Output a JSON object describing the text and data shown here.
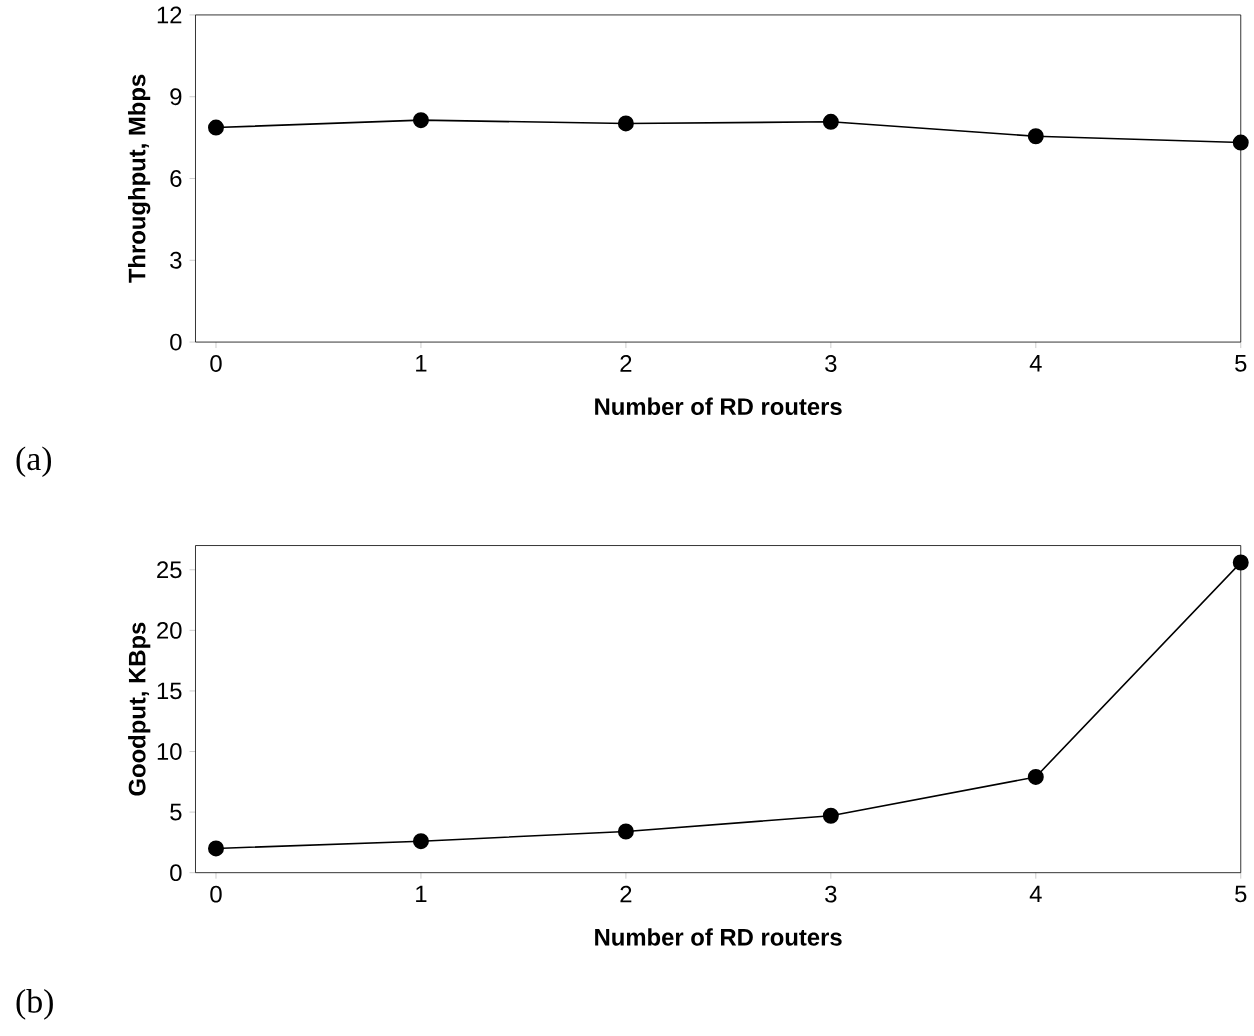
{
  "chart_data": [
    {
      "type": "line",
      "xlabel": "Number of RD routers",
      "ylabel": "Throughput, Mbps",
      "x": [
        0,
        1,
        2,
        3,
        4,
        5
      ],
      "xlim": [
        -0.1,
        5
      ],
      "xticks": [
        0,
        1,
        2,
        3,
        4,
        5
      ],
      "ylim": [
        0,
        12
      ],
      "yticks": [
        0,
        3,
        6,
        9,
        12
      ],
      "marker": "circle",
      "line_style": "solid",
      "grid": false,
      "series": [
        {
          "color": "#000000",
          "values": [
            7.87,
            8.14,
            8.02,
            8.08,
            7.55,
            7.32
          ]
        }
      ],
      "annotations": [
        "(a)"
      ]
    },
    {
      "type": "line",
      "xlabel": "Number of RD routers",
      "ylabel": "Goodput, KBps",
      "x": [
        0,
        1,
        2,
        3,
        4,
        5
      ],
      "xlim": [
        -0.1,
        5
      ],
      "xticks": [
        0,
        1,
        2,
        3,
        4,
        5
      ],
      "ylim": [
        0,
        27
      ],
      "yticks": [
        0,
        5,
        10,
        15,
        20,
        25
      ],
      "marker": "circle",
      "line_style": "solid",
      "grid": false,
      "series": [
        {
          "color": "#000000",
          "values": [
            2.0,
            2.6,
            3.4,
            4.7,
            7.9,
            25.6
          ]
        }
      ],
      "annotations": [
        "(b)"
      ]
    }
  ]
}
